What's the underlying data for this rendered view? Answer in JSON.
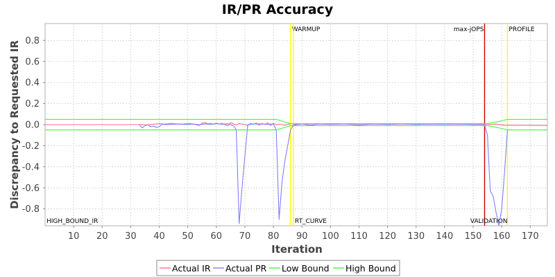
{
  "chart_data": {
    "type": "line",
    "title": "IR/PR Accuracy",
    "xlabel": "Iteration",
    "ylabel": "Discrepancy to Requested IR",
    "xlim": [
      0,
      176
    ],
    "ylim": [
      -0.96,
      0.96
    ],
    "x_ticks": [
      10,
      20,
      30,
      40,
      50,
      60,
      70,
      80,
      90,
      100,
      110,
      120,
      130,
      140,
      150,
      160,
      170
    ],
    "y_ticks": [
      -0.8,
      -0.6,
      -0.4,
      -0.2,
      0.0,
      0.2,
      0.4,
      0.6,
      0.8
    ],
    "y_tick_labels": [
      "-0.8",
      "-0.6",
      "-0.4",
      "-0.2",
      "0.0",
      "0.2",
      "0.4",
      "0.6",
      "0.8"
    ],
    "grid": true,
    "legend_position": "bottom",
    "markers": [
      {
        "name": "WARMUP",
        "x": 86,
        "color": "#ffff00",
        "label_position": "top",
        "width": 1
      },
      {
        "name": "WARMUP",
        "x": 87,
        "color": "#ffff00",
        "label_position": "none",
        "width": 1
      },
      {
        "name": "max-jOPS",
        "x": 154,
        "color": "#cc0000",
        "label_position": "top-left",
        "width": 1
      },
      {
        "name": "PROFILE",
        "x": 162,
        "color": "#ffff00",
        "label_position": "top",
        "width": 1
      },
      {
        "name": "RT_CURVE",
        "x": 87,
        "color": "#ffff00",
        "label_position": "bottom",
        "width": 0
      },
      {
        "name": "VALIDATION",
        "x": 154,
        "color": "#cc0000",
        "label_position": "bottom-left",
        "width": 0
      },
      {
        "name": "HIGH_BOUND_IR",
        "x": 0,
        "color": "#ffff00",
        "label_position": "bottom",
        "width": 0
      }
    ],
    "series": [
      {
        "name": "Actual IR",
        "color": "#ff6b8a",
        "points": [
          [
            0,
            0
          ],
          [
            33,
            0
          ],
          [
            34,
            0.002
          ],
          [
            36,
            -0.003
          ],
          [
            38,
            0.004
          ],
          [
            40,
            0.01
          ],
          [
            42,
            0.005
          ],
          [
            44,
            0.012
          ],
          [
            46,
            0.008
          ],
          [
            48,
            0.004
          ],
          [
            50,
            0.012
          ],
          [
            52,
            0.006
          ],
          [
            54,
            -0.008
          ],
          [
            55,
            0.014
          ],
          [
            56,
            0.02
          ],
          [
            57,
            0.008
          ],
          [
            58,
            0.012
          ],
          [
            59,
            0.004
          ],
          [
            60,
            0.016
          ],
          [
            61,
            0.006
          ],
          [
            62,
            0.014
          ],
          [
            63,
            0.002
          ],
          [
            64,
            -0.012
          ],
          [
            65,
            0.018
          ],
          [
            66,
            0.008
          ],
          [
            67,
            -0.004
          ],
          [
            68,
            0.01
          ],
          [
            70,
            0.002
          ],
          [
            71,
            -0.01
          ],
          [
            72,
            0.012
          ],
          [
            73,
            0.004
          ],
          [
            74,
            0.016
          ],
          [
            75,
            -0.006
          ],
          [
            76,
            0.012
          ],
          [
            77,
            0.002
          ],
          [
            78,
            0.018
          ],
          [
            79,
            -0.008
          ],
          [
            80,
            0.014
          ],
          [
            81,
            -0.002
          ],
          [
            82,
            0.006
          ],
          [
            84,
            -0.006
          ],
          [
            86,
            0.01
          ],
          [
            88,
            0.004
          ],
          [
            90,
            0.01
          ],
          [
            93,
            -0.002
          ],
          [
            96,
            0.006
          ],
          [
            100,
            0.002
          ],
          [
            105,
            0.006
          ],
          [
            110,
            0.0
          ],
          [
            115,
            0.005
          ],
          [
            120,
            0.002
          ],
          [
            125,
            0.006
          ],
          [
            130,
            0.002
          ],
          [
            135,
            0.005
          ],
          [
            140,
            0.003
          ],
          [
            145,
            0.005
          ],
          [
            150,
            0.002
          ],
          [
            153,
            0.004
          ],
          [
            155,
            0.0
          ],
          [
            158,
            0.005
          ],
          [
            161,
            -0.006
          ],
          [
            165,
            -0.005
          ],
          [
            170,
            -0.006
          ],
          [
            176,
            -0.008
          ]
        ]
      },
      {
        "name": "Actual PR",
        "color": "#7f7fff",
        "points": [
          [
            33,
            0.0
          ],
          [
            34,
            -0.03
          ],
          [
            35,
            -0.01
          ],
          [
            36,
            0.0
          ],
          [
            37,
            -0.02
          ],
          [
            38,
            -0.015
          ],
          [
            39,
            -0.025
          ],
          [
            40,
            -0.02
          ],
          [
            41,
            0.005
          ],
          [
            42,
            0.0
          ],
          [
            44,
            0.002
          ],
          [
            46,
            0.006
          ],
          [
            48,
            0.004
          ],
          [
            50,
            0.002
          ],
          [
            52,
            0.006
          ],
          [
            54,
            0.0
          ],
          [
            56,
            0.008
          ],
          [
            58,
            0.004
          ],
          [
            60,
            0.01
          ],
          [
            62,
            0.004
          ],
          [
            64,
            0.008
          ],
          [
            66,
            -0.01
          ],
          [
            67,
            -0.05
          ],
          [
            68,
            -0.94
          ],
          [
            69,
            -0.6
          ],
          [
            70,
            -0.3
          ],
          [
            71,
            0.0
          ],
          [
            72,
            0.004
          ],
          [
            74,
            0.008
          ],
          [
            76,
            0.006
          ],
          [
            78,
            0.004
          ],
          [
            80,
            0.006
          ],
          [
            81,
            -0.05
          ],
          [
            82,
            -0.9
          ],
          [
            83,
            -0.55
          ],
          [
            84,
            -0.35
          ],
          [
            85,
            -0.2
          ],
          [
            86,
            -0.05
          ],
          [
            87,
            -0.005
          ],
          [
            90,
            0.008
          ],
          [
            93,
            -0.006
          ],
          [
            96,
            0.008
          ],
          [
            100,
            0.004
          ],
          [
            105,
            0.008
          ],
          [
            110,
            -0.004
          ],
          [
            115,
            0.008
          ],
          [
            120,
            0.002
          ],
          [
            125,
            0.008
          ],
          [
            130,
            0.002
          ],
          [
            135,
            0.006
          ],
          [
            140,
            0.003
          ],
          [
            145,
            0.006
          ],
          [
            150,
            0.002
          ],
          [
            154,
            0.0
          ],
          [
            155,
            -0.1
          ],
          [
            156,
            -0.63
          ],
          [
            157,
            -0.68
          ],
          [
            158,
            -0.83
          ],
          [
            159,
            -0.96
          ],
          [
            160,
            -0.8
          ],
          [
            161,
            -0.45
          ],
          [
            162,
            -0.05
          ]
        ]
      },
      {
        "name": "Low Bound",
        "color": "#33ff33",
        "points": [
          [
            0,
            -0.05
          ],
          [
            81,
            -0.05
          ],
          [
            86,
            -0.01
          ],
          [
            155,
            -0.01
          ],
          [
            159,
            -0.03
          ],
          [
            162,
            -0.05
          ],
          [
            176,
            -0.05
          ]
        ]
      },
      {
        "name": "High Bound",
        "color": "#33ff33",
        "points": [
          [
            0,
            0.05
          ],
          [
            81,
            0.05
          ],
          [
            86,
            0.01
          ],
          [
            155,
            0.01
          ],
          [
            159,
            0.03
          ],
          [
            162,
            0.05
          ],
          [
            176,
            0.05
          ]
        ]
      }
    ]
  },
  "legend": {
    "items": [
      {
        "label": "Actual IR",
        "color": "#ff6b8a"
      },
      {
        "label": "Actual PR",
        "color": "#7f7fff"
      },
      {
        "label": "Low Bound",
        "color": "#33ff33"
      },
      {
        "label": "High Bound",
        "color": "#33ff33"
      }
    ]
  }
}
